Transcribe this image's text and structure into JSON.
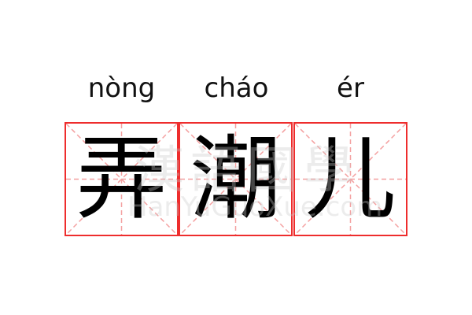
{
  "word": [
    {
      "pinyin": "nòng",
      "char": "弄"
    },
    {
      "pinyin": "cháo",
      "char": "潮"
    },
    {
      "pinyin": "ér",
      "char": "儿"
    }
  ],
  "watermark": {
    "cn": "漢語國學",
    "en": "HanYuGuoXue.com"
  },
  "colors": {
    "border": "#ee2d2d",
    "guide": "#f4a0a0"
  }
}
